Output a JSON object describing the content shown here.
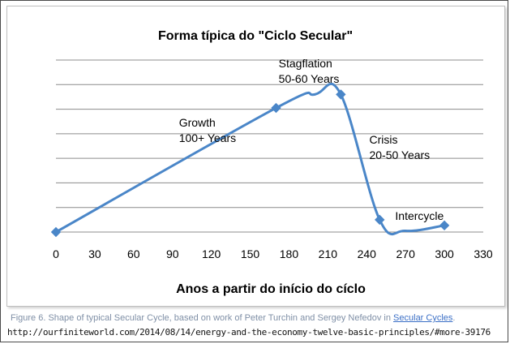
{
  "chart_data": {
    "type": "line",
    "title": "Forma típica do \"Ciclo Secular\"",
    "xlabel": "Anos a partir do início do cíclo",
    "ylabel": "",
    "xlim": [
      0,
      330
    ],
    "ylim": [
      0,
      7
    ],
    "x_ticks": [
      0,
      30,
      60,
      90,
      120,
      150,
      180,
      210,
      240,
      270,
      300,
      330
    ],
    "y_gridlines": [
      1,
      2,
      3,
      4,
      5,
      6,
      7
    ],
    "grid": "horizontal",
    "series": [
      {
        "color": "#4a86c8",
        "markers": [
          {
            "x": 0,
            "y": 0
          },
          {
            "x": 170,
            "y": 5.05
          },
          {
            "x": 220,
            "y": 5.6
          },
          {
            "x": 250,
            "y": 0.5
          },
          {
            "x": 300,
            "y": 0.27
          }
        ],
        "curve": [
          {
            "x": 0,
            "y": 0
          },
          {
            "x": 170,
            "y": 5.05
          },
          {
            "x": 200,
            "y": 5.6
          },
          {
            "x": 220,
            "y": 5.6
          },
          {
            "x": 250,
            "y": 0.5
          },
          {
            "x": 270,
            "y": 0.05
          },
          {
            "x": 300,
            "y": 0.27
          }
        ]
      }
    ],
    "annotations": [
      {
        "lines": [
          "Growth",
          "100+ Years"
        ],
        "x": 95,
        "y": 4.3
      },
      {
        "lines": [
          "Stagflation",
          "50-60 Years"
        ],
        "x": 172,
        "y": 6.7
      },
      {
        "lines": [
          "Crisis",
          "20-50 Years"
        ],
        "x": 242,
        "y": 3.6
      },
      {
        "lines": [
          "Intercycle"
        ],
        "x": 262,
        "y": 0.5
      }
    ]
  },
  "caption": {
    "text": "Figure 6. Shape of typical Secular Cycle, based on work of Peter Turchin and Sergey Nefedov in ",
    "link": "Secular Cycles",
    "end": "."
  },
  "source_url": "http://ourfiniteworld.com/2014/08/14/energy-and-the-economy-twelve-basic-principles/#more-39176"
}
